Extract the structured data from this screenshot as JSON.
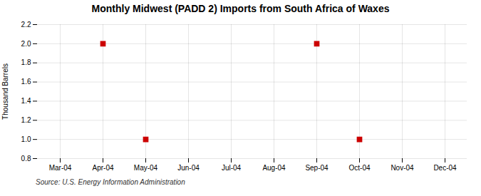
{
  "chart_data": {
    "type": "scatter",
    "title": "Monthly Midwest (PADD 2) Imports from South Africa of Waxes",
    "ylabel": "Thousand Barrels",
    "source": "Source: U.S. Energy Information Administration",
    "categories": [
      "Mar-04",
      "Apr-04",
      "May-04",
      "Jun-04",
      "Jul-04",
      "Aug-04",
      "Sep-04",
      "Oct-04",
      "Nov-04",
      "Dec-04"
    ],
    "values": [
      null,
      2.0,
      1.0,
      null,
      null,
      null,
      2.0,
      1.0,
      null,
      null
    ],
    "color": "#cc0000",
    "marker": "square",
    "ylim": [
      0.8,
      2.2
    ],
    "yticks": [
      0.8,
      {
        "value": 1.0,
        "label": "1.0"
      },
      1.2,
      1.4,
      1.6,
      1.8,
      {
        "value": 2.0,
        "label": "2.0"
      },
      2.2
    ],
    "grid": true
  }
}
